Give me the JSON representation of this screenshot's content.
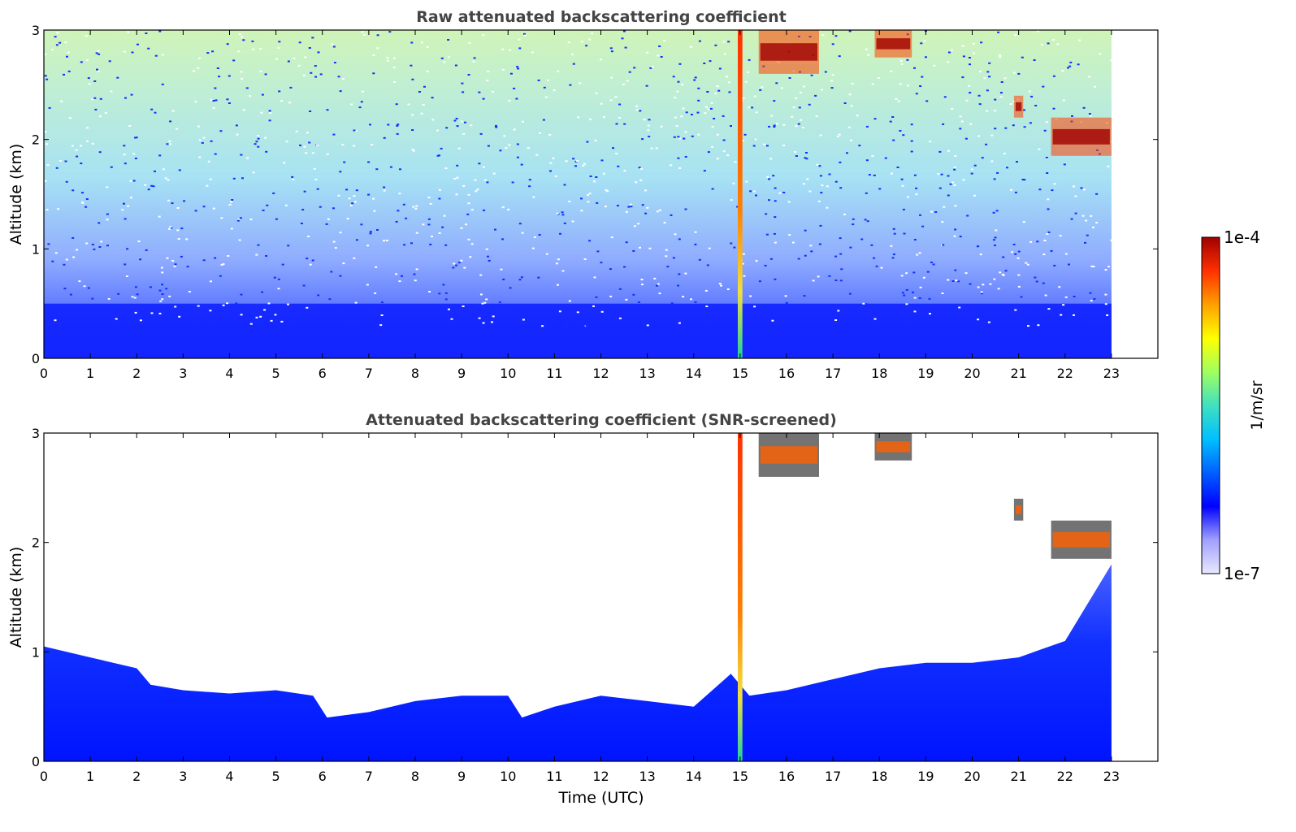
{
  "chart_data": [
    {
      "type": "heatmap",
      "title": "Raw attenuated backscattering coefficient",
      "xlabel": "",
      "ylabel": "Altitude (km)",
      "xlim": [
        0,
        24
      ],
      "ylim": [
        0,
        3
      ],
      "xticks": [
        "0",
        "1",
        "2",
        "3",
        "4",
        "5",
        "6",
        "7",
        "8",
        "9",
        "10",
        "11",
        "12",
        "13",
        "14",
        "15",
        "16",
        "17",
        "18",
        "19",
        "20",
        "21",
        "22",
        "23"
      ],
      "yticks": [
        "0",
        "1",
        "2",
        "3"
      ],
      "data_end_hour": 23,
      "features": [
        {
          "kind": "vertical_column",
          "x_start": 14.95,
          "x_end": 15.05,
          "y_start": 0,
          "y_end": 3,
          "value_range": "high"
        },
        {
          "kind": "cloud_patch",
          "x_start": 15.4,
          "x_end": 16.7,
          "y_start": 2.6,
          "y_end": 3.0,
          "value_range": "very high"
        },
        {
          "kind": "cloud_patch",
          "x_start": 17.9,
          "x_end": 18.7,
          "y_start": 2.75,
          "y_end": 3.0,
          "value_range": "very high"
        },
        {
          "kind": "cloud_patch",
          "x_start": 20.9,
          "x_end": 21.1,
          "y_start": 2.2,
          "y_end": 2.4,
          "value_range": "very high"
        },
        {
          "kind": "cloud_patch",
          "x_start": 21.7,
          "x_end": 23.0,
          "y_start": 1.85,
          "y_end": 2.2,
          "value_range": "very high"
        },
        {
          "kind": "background_noise",
          "x_start": 0,
          "x_end": 23,
          "y_start": 0,
          "y_end": 3,
          "value_range": "low to medium"
        }
      ]
    },
    {
      "type": "heatmap",
      "title": "Attenuated backscattering coefficient (SNR-screened)",
      "xlabel": "Time (UTC)",
      "ylabel": "Altitude (km)",
      "xlim": [
        0,
        24
      ],
      "ylim": [
        0,
        3
      ],
      "xticks": [
        "0",
        "1",
        "2",
        "3",
        "4",
        "5",
        "6",
        "7",
        "8",
        "9",
        "10",
        "11",
        "12",
        "13",
        "14",
        "15",
        "16",
        "17",
        "18",
        "19",
        "20",
        "21",
        "22",
        "23"
      ],
      "yticks": [
        "0",
        "1",
        "2",
        "3"
      ],
      "data_end_hour": 23,
      "boundary_layer_top": {
        "x": [
          0,
          1,
          2,
          2.3,
          3,
          4,
          5,
          5.8,
          6.1,
          7,
          8,
          9,
          10,
          10.3,
          11,
          12,
          13,
          14,
          14.8,
          15.2,
          16,
          17,
          18,
          19,
          20,
          21,
          22,
          23
        ],
        "y": [
          1.05,
          0.95,
          0.85,
          0.7,
          0.65,
          0.62,
          0.65,
          0.6,
          0.4,
          0.45,
          0.55,
          0.6,
          0.6,
          0.4,
          0.5,
          0.6,
          0.55,
          0.5,
          0.8,
          0.6,
          0.65,
          0.75,
          0.85,
          0.9,
          0.9,
          0.95,
          1.1,
          1.8
        ]
      },
      "features": [
        {
          "kind": "vertical_column",
          "x_start": 14.95,
          "x_end": 15.05,
          "y_start": 0,
          "y_end": 3,
          "value_range": "high"
        },
        {
          "kind": "cloud_patch",
          "x_start": 15.4,
          "x_end": 16.7,
          "y_start": 2.6,
          "y_end": 3.0,
          "value_range": "very high"
        },
        {
          "kind": "cloud_patch",
          "x_start": 17.9,
          "x_end": 18.7,
          "y_start": 2.75,
          "y_end": 3.0,
          "value_range": "very high"
        },
        {
          "kind": "cloud_patch",
          "x_start": 20.9,
          "x_end": 21.1,
          "y_start": 2.2,
          "y_end": 2.4,
          "value_range": "very high"
        },
        {
          "kind": "cloud_patch",
          "x_start": 21.7,
          "x_end": 23.0,
          "y_start": 1.85,
          "y_end": 2.2,
          "value_range": "very high"
        }
      ]
    }
  ],
  "colorbar": {
    "label": "1/m/sr",
    "max_label": "1e-4",
    "min_label": "1e-7",
    "scale": "log",
    "colors": [
      "#e8e8ff",
      "#a0a0ff",
      "#0000ff",
      "#0060ff",
      "#00c0ff",
      "#40e0c0",
      "#a0ff60",
      "#ffff00",
      "#ffa000",
      "#ff3000",
      "#a00000"
    ]
  }
}
